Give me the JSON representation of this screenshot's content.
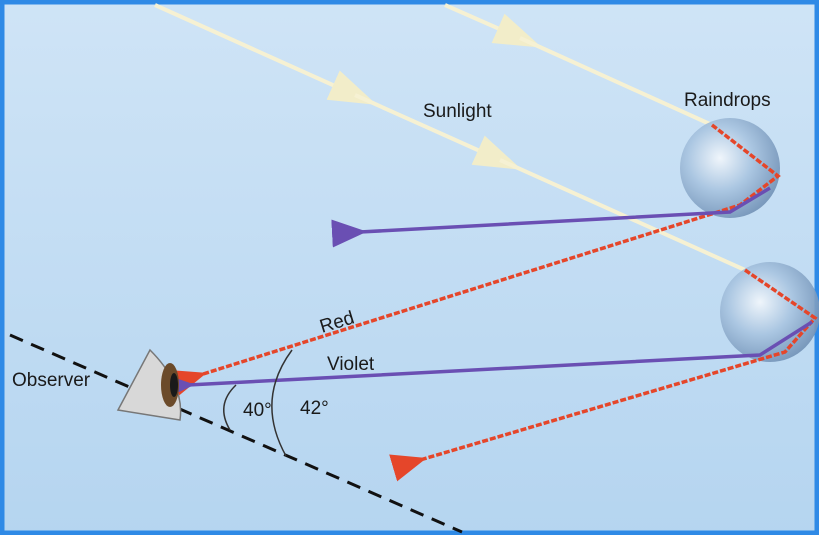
{
  "labels": {
    "sunlight": "Sunlight",
    "raindrops": "Raindrops",
    "red": "Red",
    "violet": "Violet",
    "observer": "Observer",
    "inner_angle": "40°",
    "outer_angle": "42°"
  }
}
